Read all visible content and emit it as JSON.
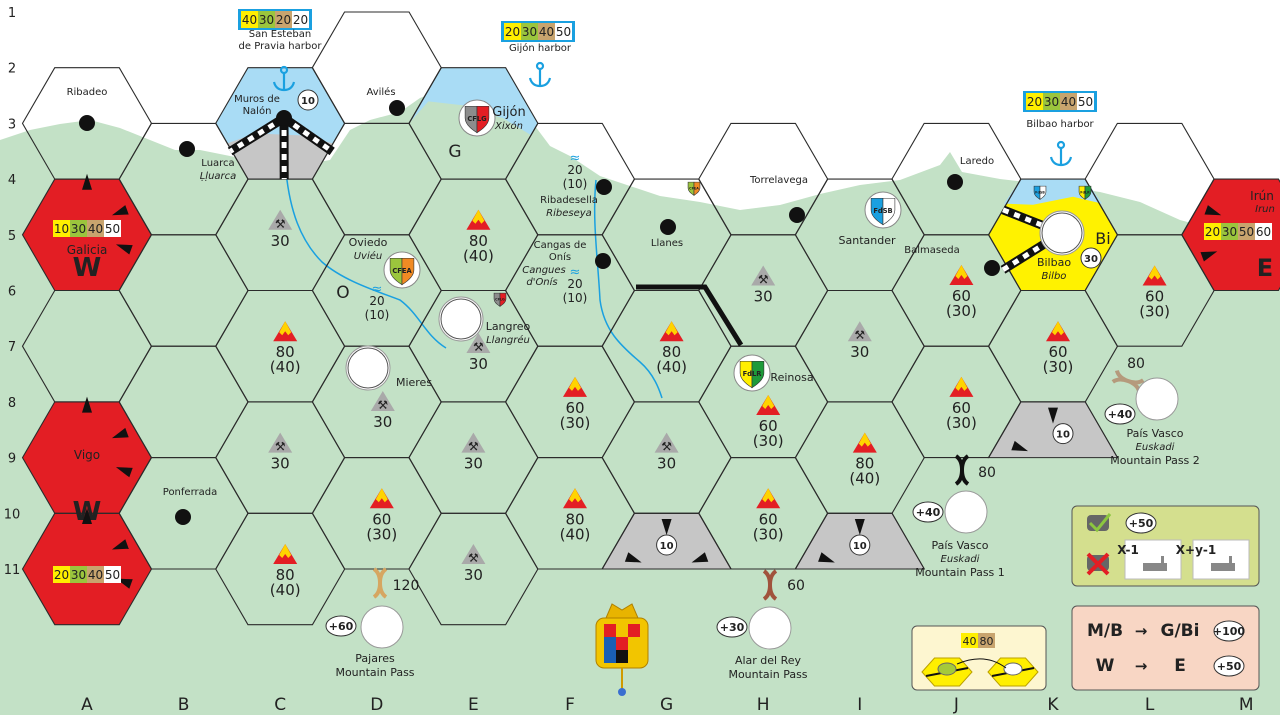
{
  "board": {
    "row_labels": [
      "1",
      "2",
      "3",
      "4",
      "5",
      "6",
      "7",
      "8",
      "9",
      "10",
      "11"
    ],
    "column_labels": [
      "A",
      "B",
      "C",
      "D",
      "E",
      "F",
      "G",
      "H",
      "I",
      "J",
      "K",
      "L",
      "M"
    ],
    "colors": {
      "land": "#c3e1c6",
      "sea": "#ffffff",
      "offboard": "#e31e24",
      "harbor_water": "#a9dcf5",
      "bilbao": "#fff200",
      "grey": "#c6c6c6",
      "river": "#1aa0e0",
      "rev_yellow": "#ffef00",
      "rev_green": "#9bc53d",
      "rev_tan": "#c8a46e",
      "rev_white": "#ffffff"
    }
  },
  "harbors": [
    {
      "name": "San Esteban",
      "name2": "de Pravia harbor",
      "revenues": [
        "40",
        "30",
        "20",
        "20"
      ],
      "icon": "anchor-icon"
    },
    {
      "name": "Gijón harbor",
      "name2": "",
      "revenues": [
        "20",
        "30",
        "40",
        "50"
      ],
      "icon": "anchor-icon"
    },
    {
      "name": "Bilbao harbor",
      "name2": "",
      "revenues": [
        "20",
        "30",
        "40",
        "50"
      ],
      "icon": "anchor-icon"
    }
  ],
  "hexes": [
    {
      "id": "A3",
      "terrain": "coast",
      "town": "Ribadeo"
    },
    {
      "id": "A5",
      "terrain": "offboard",
      "name": "Galicia",
      "revenues": [
        "10",
        "30",
        "40",
        "50"
      ],
      "letter": "W"
    },
    {
      "id": "A7",
      "terrain": "land"
    },
    {
      "id": "A9",
      "terrain": "offboard",
      "name": "Vigo",
      "letter": "W"
    },
    {
      "id": "A11",
      "terrain": "offboard",
      "revenues": [
        "20",
        "30",
        "40",
        "50"
      ]
    },
    {
      "id": "B4",
      "terrain": "land",
      "town": "Luarca",
      "town_alt": "Ḷḷuarca"
    },
    {
      "id": "B6",
      "terrain": "land"
    },
    {
      "id": "B8",
      "terrain": "land"
    },
    {
      "id": "B10",
      "terrain": "land",
      "town": "Ponferrada"
    },
    {
      "id": "C3",
      "terrain": "harbor",
      "city": "Muros de",
      "city2": "Nalón",
      "value": "10"
    },
    {
      "id": "C5",
      "terrain": "land",
      "cost_type": "mine",
      "cost": "30"
    },
    {
      "id": "C7",
      "terrain": "land",
      "cost_type": "mountain",
      "cost": "80",
      "cost_half": "(40)"
    },
    {
      "id": "C9",
      "terrain": "land",
      "cost_type": "mine",
      "cost": "30"
    },
    {
      "id": "C11",
      "terrain": "land",
      "cost_type": "mountain",
      "cost": "80",
      "cost_half": "(40)"
    },
    {
      "id": "D2",
      "terrain": "coast",
      "town": "Avilés"
    },
    {
      "id": "D4",
      "terrain": "land"
    },
    {
      "id": "D6",
      "terrain": "land",
      "city": "Oviedo",
      "city_alt": "Uviéu",
      "company": "CFEA",
      "letter": "O",
      "river_cost": "20",
      "river_half": "(10)"
    },
    {
      "id": "D8",
      "terrain": "land",
      "city": "Mieres",
      "cost_type": "mine",
      "cost": "30"
    },
    {
      "id": "D10",
      "terrain": "land",
      "cost_type": "mountain",
      "cost": "60",
      "cost_half": "(30)"
    },
    {
      "id": "E3",
      "terrain": "gijon",
      "city": "Gijón",
      "city_alt": "Xixón",
      "company": "CFLG",
      "letter": "G"
    },
    {
      "id": "E5",
      "terrain": "land",
      "cost_type": "mountain",
      "cost": "80",
      "cost_half": "(40)"
    },
    {
      "id": "E7",
      "terrain": "land",
      "city": "Langreo",
      "city_alt": "Llangréu",
      "company_small": "CFLG",
      "cost_type": "mine",
      "cost": "30"
    },
    {
      "id": "E9",
      "terrain": "land",
      "cost_type": "mine",
      "cost": "30"
    },
    {
      "id": "E11",
      "terrain": "land",
      "cost_type": "mine",
      "cost": "30"
    },
    {
      "id": "F4",
      "terrain": "coast",
      "town": "Ribadesella",
      "town_alt": "Ribeseya",
      "river_cost": "20",
      "river_half": "(10)"
    },
    {
      "id": "F6",
      "terrain": "land",
      "town": "Cangas de",
      "town2": "Onís",
      "town_alt": "Cangues",
      "town_alt2": "d'Onís",
      "river_cost": "20",
      "river_half": "(10)"
    },
    {
      "id": "F8",
      "terrain": "land",
      "cost_type": "mountain",
      "cost": "60",
      "cost_half": "(30)"
    },
    {
      "id": "F10",
      "terrain": "land",
      "cost_type": "mountain",
      "cost": "80",
      "cost_half": "(40)"
    },
    {
      "id": "G5",
      "terrain": "coast",
      "town": "Llanes",
      "company_small": "CFEA"
    },
    {
      "id": "G7",
      "terrain": "land",
      "cost_type": "mountain",
      "cost": "80",
      "cost_half": "(40)"
    },
    {
      "id": "G9",
      "terrain": "land",
      "cost_type": "mine",
      "cost": "30"
    },
    {
      "id": "G11",
      "terrain": "grey",
      "value": "10"
    },
    {
      "id": "H4",
      "terrain": "coast",
      "town": "Torrelavega"
    },
    {
      "id": "H6",
      "terrain": "land",
      "cost_type": "mine",
      "cost": "30"
    },
    {
      "id": "H8",
      "terrain": "land",
      "city": "Reinosa",
      "company": "FdLR",
      "cost_type": "mountain",
      "cost": "60",
      "cost_half": "(30)"
    },
    {
      "id": "H10",
      "terrain": "land",
      "cost_type": "mountain",
      "cost": "60",
      "cost_half": "(30)"
    },
    {
      "id": "I5",
      "terrain": "coast",
      "city": "Santander",
      "company": "FdSB"
    },
    {
      "id": "I7",
      "terrain": "land",
      "cost_type": "mine",
      "cost": "30"
    },
    {
      "id": "I9",
      "terrain": "land",
      "cost_type": "mountain",
      "cost": "80",
      "cost_half": "(40)"
    },
    {
      "id": "I11",
      "terrain": "grey",
      "value": "10"
    },
    {
      "id": "J4",
      "terrain": "coast",
      "town": "Laredo"
    },
    {
      "id": "J6",
      "terrain": "land",
      "town": "Balmaseda",
      "cost_type": "mountain",
      "cost": "60",
      "cost_half": "(30)"
    },
    {
      "id": "J8",
      "terrain": "land",
      "cost_type": "mountain",
      "cost": "60",
      "cost_half": "(30)"
    },
    {
      "id": "K5",
      "terrain": "bilbao",
      "city": "Bilbao",
      "city_alt": "Bilbo",
      "letter": "Bi",
      "value": "30",
      "company_small": "FdSB",
      "company_small2": "FdLR"
    },
    {
      "id": "K7",
      "terrain": "land",
      "cost_type": "mountain",
      "cost": "60",
      "cost_half": "(30)"
    },
    {
      "id": "K9",
      "terrain": "grey",
      "value": "10"
    },
    {
      "id": "L4",
      "terrain": "coast"
    },
    {
      "id": "L6",
      "terrain": "land",
      "cost_type": "mountain",
      "cost": "60",
      "cost_half": "(30)"
    },
    {
      "id": "M5",
      "terrain": "offboard",
      "name": "Irún",
      "name_alt": "Irun",
      "revenues": [
        "20",
        "30",
        "50",
        "60"
      ],
      "letter": "E"
    }
  ],
  "companies": {
    "CFEA": [
      "#9bc53d",
      "#f08a24"
    ],
    "CFLG": [
      "#8c8c8c",
      "#e31e24"
    ],
    "FdSB": [
      "#1aa0e0",
      "#ffffff"
    ],
    "FdLR": [
      "#ffef00",
      "#1e9a3a"
    ]
  },
  "passes": [
    {
      "name": "Pajares",
      "name2": "Mountain Pass",
      "name_alt": "",
      "cost": "120",
      "bonus": "+60",
      "color": "#d6a661"
    },
    {
      "name": "Alar del Rey",
      "name2": "Mountain Pass",
      "name_alt": "",
      "cost": "60",
      "bonus": "+30",
      "color": "#a0523c"
    },
    {
      "name": "País Vasco",
      "name_alt": "Euskadi",
      "name2": "Mountain Pass 1",
      "cost": "80",
      "bonus": "+40",
      "color": "#111111"
    },
    {
      "name": "País Vasco",
      "name_alt": "Euskadi",
      "name2": "Mountain Pass 2",
      "cost": "80",
      "bonus": "+40",
      "color": "#b59a7c"
    }
  ],
  "legend": {
    "train_box": {
      "bonus": "+50",
      "card1": "X-1",
      "card2": "X+y-1"
    },
    "upgrade_box": {
      "values": [
        "40",
        "80"
      ]
    },
    "route_box": {
      "rows": [
        {
          "from": "M/B",
          "arrow": "→",
          "to": "G/Bi",
          "bonus": "+100"
        },
        {
          "from": "W",
          "arrow": "→",
          "to": "E",
          "bonus": "+50"
        }
      ]
    }
  }
}
